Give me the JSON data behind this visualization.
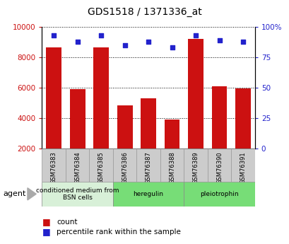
{
  "title": "GDS1518 / 1371336_at",
  "categories": [
    "GSM76383",
    "GSM76384",
    "GSM76385",
    "GSM76386",
    "GSM76387",
    "GSM76388",
    "GSM76389",
    "GSM76390",
    "GSM76391"
  ],
  "bar_values": [
    8650,
    5900,
    8650,
    4850,
    5300,
    3900,
    9200,
    6100,
    5950
  ],
  "percentile_values": [
    93,
    88,
    93,
    85,
    88,
    83,
    93,
    89,
    88
  ],
  "bar_color": "#cc1111",
  "dot_color": "#2222cc",
  "ylim_left": [
    2000,
    10000
  ],
  "ylim_right": [
    0,
    100
  ],
  "yticks_left": [
    2000,
    4000,
    6000,
    8000,
    10000
  ],
  "yticks_right": [
    0,
    25,
    50,
    75,
    100
  ],
  "ytick_labels_right": [
    "0",
    "25",
    "50",
    "75",
    "100%"
  ],
  "groups": [
    {
      "label": "conditioned medium from\nBSN cells",
      "start": 0,
      "end": 3,
      "color": "#d8f0d8"
    },
    {
      "label": "heregulin",
      "start": 3,
      "end": 6,
      "color": "#77dd77"
    },
    {
      "label": "pleiotrophin",
      "start": 6,
      "end": 9,
      "color": "#77dd77"
    }
  ],
  "agent_label": "agent",
  "legend_count_label": "count",
  "legend_pct_label": "percentile rank within the sample",
  "tick_label_area_color": "#cccccc"
}
